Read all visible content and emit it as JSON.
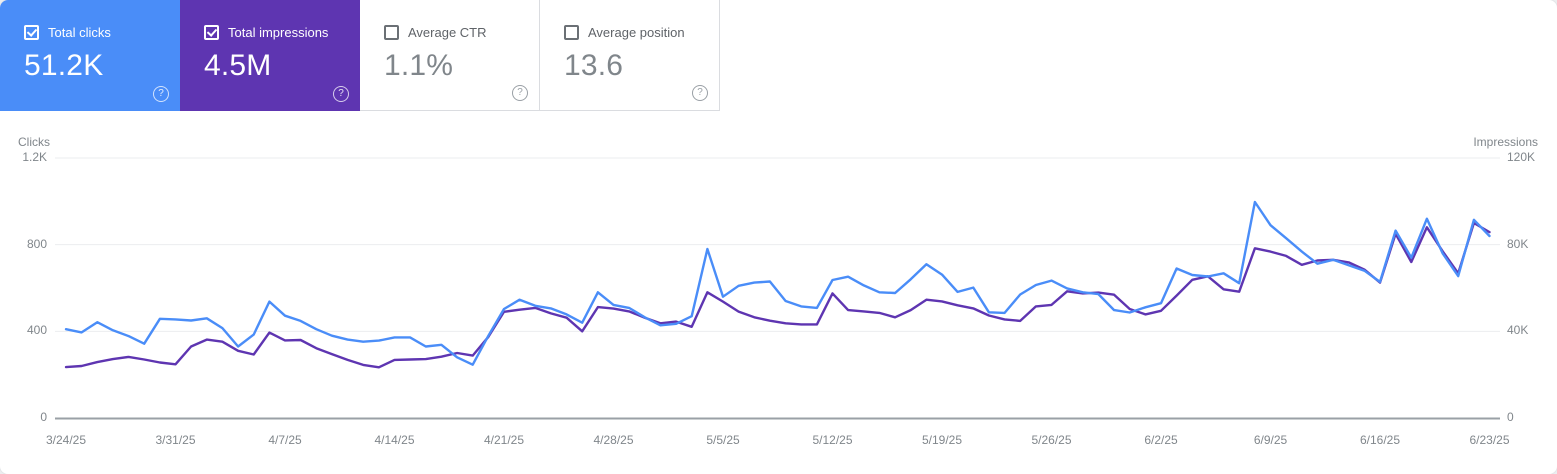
{
  "cards": [
    {
      "label": "Total clicks",
      "value": "51.2K",
      "checked": true,
      "accent": "#4a8df8"
    },
    {
      "label": "Total impressions",
      "value": "4.5M",
      "checked": true,
      "accent": "#5e35b1"
    },
    {
      "label": "Average CTR",
      "value": "1.1%",
      "checked": false
    },
    {
      "label": "Average position",
      "value": "13.6",
      "checked": false
    }
  ],
  "icons": {
    "help_glyph": "?",
    "checked_checkbox": "checkmark",
    "unchecked_checkbox": "empty"
  },
  "chart_data": {
    "type": "line",
    "x_start": "3/24/25",
    "x_end": "6/23/25",
    "frequency": "daily",
    "grid": true,
    "legend_position": "none",
    "x_tick_labels": [
      "3/24/25",
      "3/31/25",
      "4/7/25",
      "4/14/25",
      "4/21/25",
      "4/28/25",
      "5/5/25",
      "5/12/25",
      "5/19/25",
      "5/26/25",
      "6/2/25",
      "6/9/25",
      "6/16/25",
      "6/23/25"
    ],
    "left_axis": {
      "title": "Clicks",
      "ticks": [
        "0",
        "400",
        "800",
        "1.2K"
      ],
      "max": 1200
    },
    "right_axis": {
      "title": "Impressions",
      "ticks": [
        "0",
        "40K",
        "80K",
        "120K"
      ],
      "max": 120000
    },
    "series": [
      {
        "name": "Total clicks",
        "color": "#4a8df8",
        "axis": "left",
        "values": [
          410,
          395,
          442,
          405,
          378,
          343,
          458,
          455,
          450,
          460,
          415,
          330,
          385,
          537,
          472,
          448,
          410,
          380,
          362,
          352,
          357,
          372,
          372,
          330,
          338,
          280,
          246,
          380,
          503,
          546,
          518,
          506,
          478,
          440,
          580,
          522,
          508,
          465,
          428,
          435,
          470,
          780,
          560,
          610,
          625,
          630,
          540,
          515,
          508,
          637,
          652,
          612,
          580,
          577,
          640,
          710,
          662,
          582,
          602,
          488,
          485,
          570,
          614,
          634,
          598,
          580,
          572,
          498,
          487,
          511,
          530,
          690,
          660,
          653,
          668,
          622,
          997,
          890,
          830,
          768,
          712,
          730,
          705,
          680,
          628,
          865,
          740,
          920,
          760,
          655,
          915,
          840
        ]
      },
      {
        "name": "Total impressions",
        "color": "#5e35b1",
        "axis": "right",
        "values": [
          23500,
          24000,
          25800,
          27200,
          28200,
          27000,
          25600,
          24800,
          33000,
          36200,
          35200,
          31000,
          29300,
          39400,
          35800,
          36000,
          32200,
          29500,
          26800,
          24500,
          23400,
          26800,
          27000,
          27200,
          28300,
          30000,
          28800,
          37500,
          49000,
          50000,
          50800,
          48300,
          46300,
          40000,
          51200,
          50500,
          49200,
          46300,
          43700,
          44500,
          42100,
          58000,
          53700,
          49100,
          46500,
          44900,
          43700,
          43200,
          43200,
          57500,
          49800,
          49200,
          48500,
          46500,
          49800,
          54600,
          53800,
          52000,
          50600,
          47300,
          45500,
          44800,
          51500,
          52200,
          58500,
          57500,
          57900,
          56900,
          50300,
          47800,
          49500,
          56500,
          63800,
          65400,
          59400,
          58300,
          78300,
          76800,
          74800,
          70700,
          72700,
          73000,
          71800,
          68500,
          62500,
          85000,
          72000,
          88000,
          77000,
          66800,
          90000,
          85800
        ]
      }
    ]
  }
}
